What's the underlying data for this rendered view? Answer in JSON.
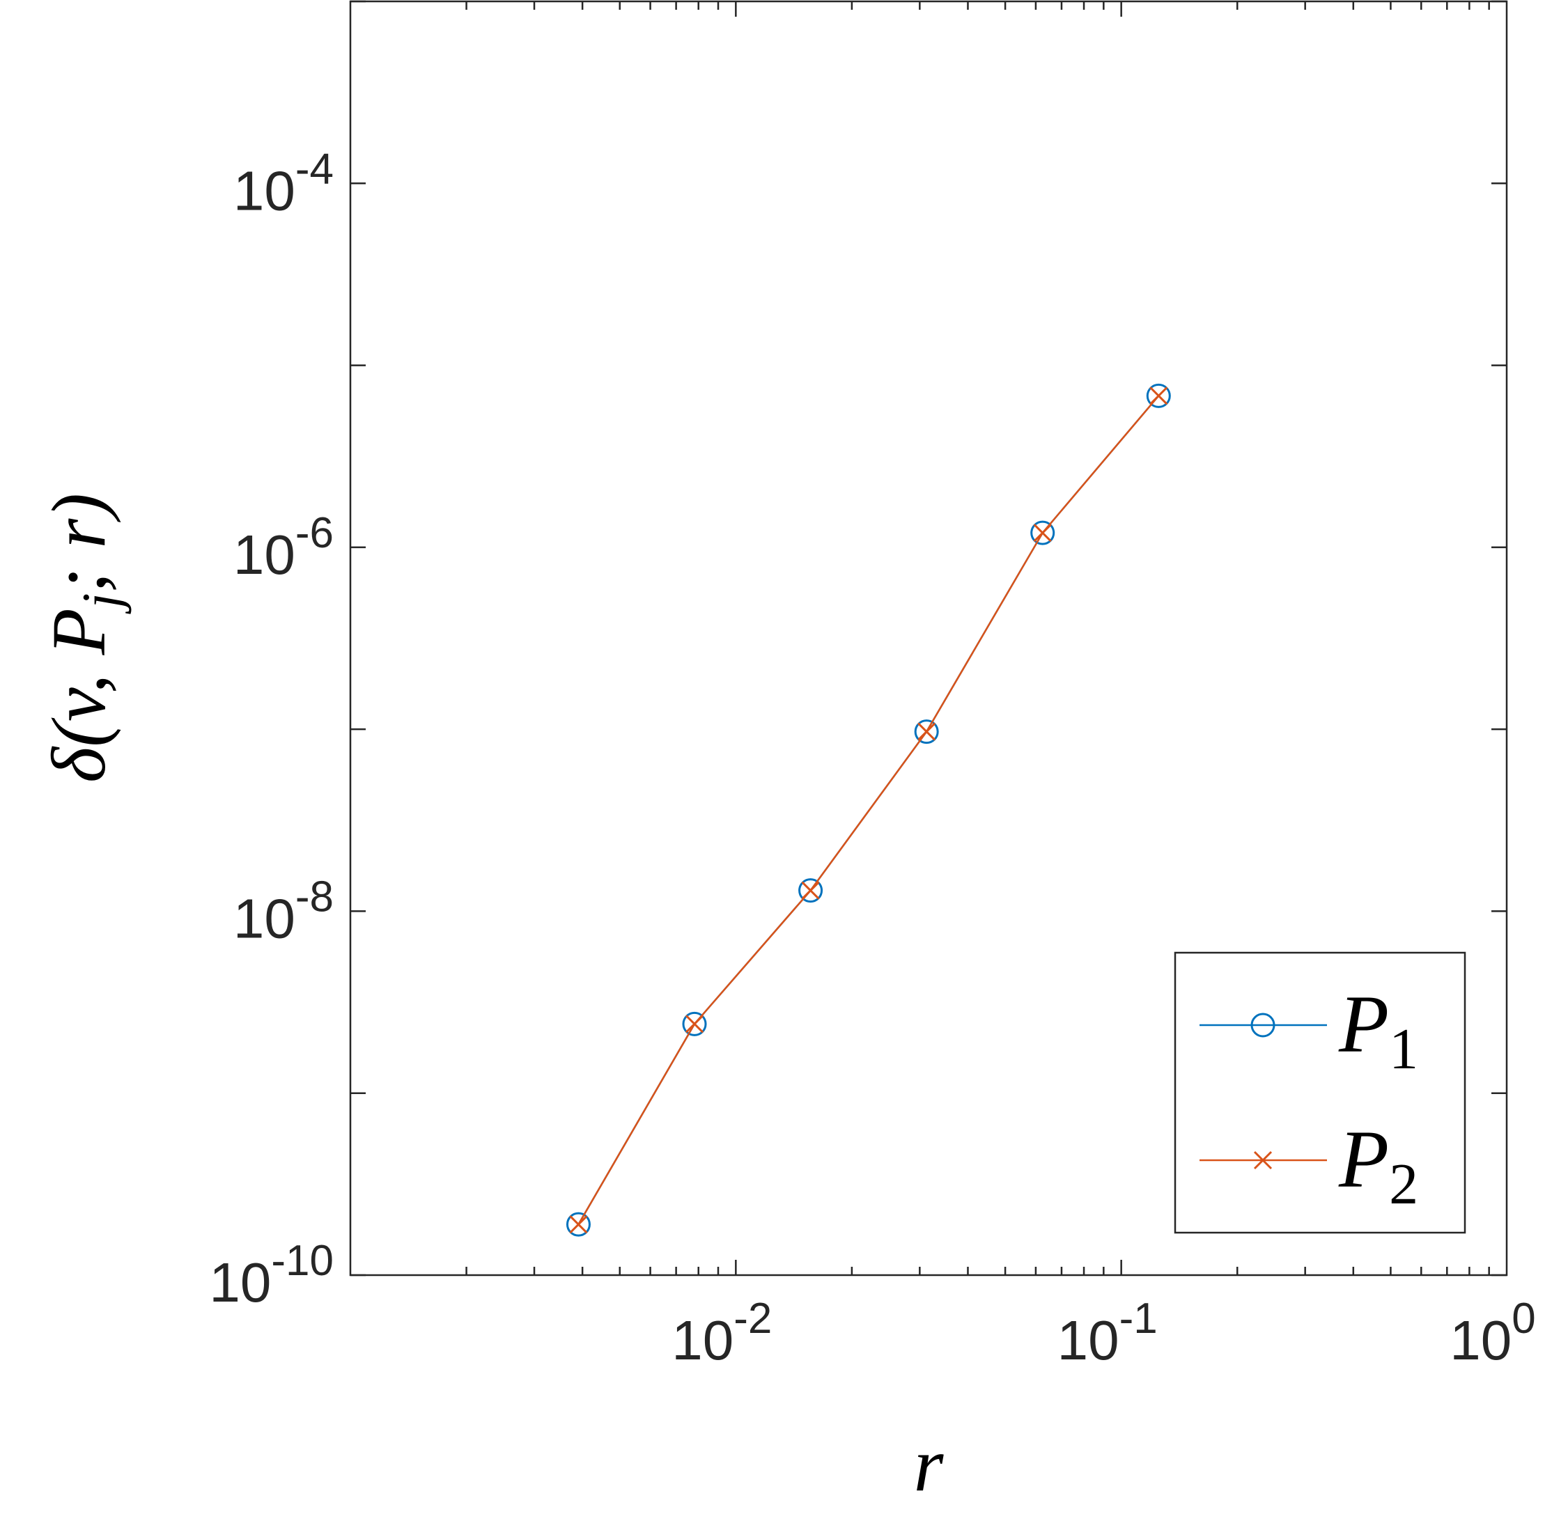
{
  "chart_data": {
    "type": "line",
    "xscale": "log",
    "yscale": "log",
    "xlim": [
      0.001,
      1
    ],
    "ylim": [
      1e-10,
      0.001
    ],
    "xticks": [
      {
        "value": 0.01,
        "base": "10",
        "exp": "-2"
      },
      {
        "value": 0.1,
        "base": "10",
        "exp": "-1"
      },
      {
        "value": 1,
        "base": "10",
        "exp": "0"
      }
    ],
    "yticks": [
      {
        "value": 1e-10,
        "base": "10",
        "exp": "-10"
      },
      {
        "value": 1e-08,
        "base": "10",
        "exp": "-8"
      },
      {
        "value": 1e-06,
        "base": "10",
        "exp": "-6"
      },
      {
        "value": 0.0001,
        "base": "10",
        "exp": "-4"
      }
    ],
    "xlabel": "r",
    "ylabel": "δ(v, P_j; r)",
    "grid": false,
    "legend_position": "bottom-right",
    "x": [
      0.00390625,
      0.0078125,
      0.015625,
      0.03125,
      0.0625,
      0.125
    ],
    "series": [
      {
        "name": "P_1",
        "marker": "circle",
        "color": "#0072BD",
        "values": [
          1.9e-10,
          2.4e-09,
          1.3e-08,
          9.7e-08,
          1.2e-06,
          6.8e-06
        ]
      },
      {
        "name": "P_2",
        "marker": "x",
        "color": "#D95319",
        "values": [
          1.9e-10,
          2.4e-09,
          1.3e-08,
          9.7e-08,
          1.2e-06,
          6.8e-06
        ]
      }
    ]
  }
}
